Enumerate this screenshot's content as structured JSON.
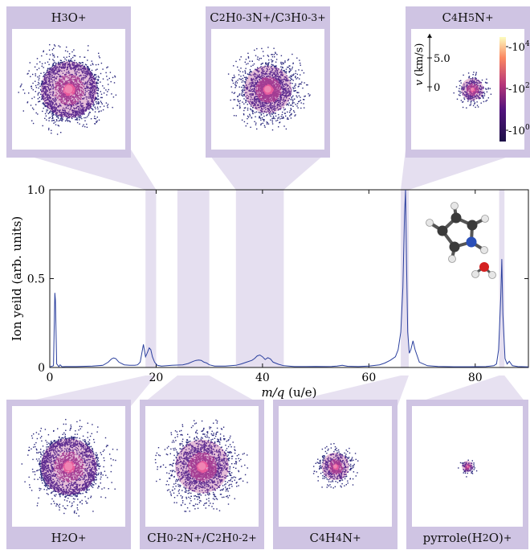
{
  "chart_data": {
    "type": "line",
    "xlabel_var": "m/q",
    "xlabel_unit": "(u/e)",
    "ylabel": "Ion yeild (arb. units)",
    "xlim": [
      0,
      90
    ],
    "ylim": [
      0,
      1.0
    ],
    "xticks": [
      "0",
      "20",
      "40",
      "60",
      "80"
    ],
    "xtick_values": [
      0,
      20,
      40,
      60,
      80
    ],
    "yticks": [
      "0",
      "0.5",
      "1.0"
    ],
    "ytick_values": [
      0,
      0.5,
      1.0
    ],
    "line_color": "#2a3f9e",
    "band_color": "#cfc4e3",
    "grid": false,
    "series": [
      {
        "x": [
          0,
          0.7,
          0.95,
          1.05,
          1.3,
          1.7,
          1.95,
          2.05,
          2.3,
          3,
          5,
          8,
          10,
          11,
          11.6,
          12,
          12.4,
          13,
          14,
          15,
          16,
          16.5,
          17,
          17.6,
          18,
          18.3,
          18.7,
          19,
          19.3,
          19.7,
          20.2,
          21,
          23,
          25,
          26,
          27,
          27.5,
          28,
          28.5,
          29,
          29.5,
          30,
          31,
          33,
          35,
          36,
          36.5,
          37,
          38,
          38.5,
          39,
          39.5,
          40,
          40.5,
          41,
          41.5,
          42,
          43,
          44,
          46,
          48,
          50,
          52,
          53,
          54,
          55,
          56,
          58,
          60,
          62,
          63,
          64,
          65,
          65.5,
          66,
          66.4,
          66.7,
          66.9,
          67.1,
          67.3,
          67.6,
          67.9,
          68.3,
          68.7,
          69.5,
          71,
          73,
          76,
          79,
          82,
          83.5,
          84,
          84.4,
          84.8,
          85.0,
          85.2,
          85.6,
          86.0,
          86.4,
          87,
          88,
          90
        ],
        "y": [
          0.003,
          0.01,
          0.42,
          0.38,
          0.02,
          0.005,
          0.015,
          0.012,
          0.004,
          0.005,
          0.005,
          0.008,
          0.012,
          0.03,
          0.048,
          0.054,
          0.05,
          0.03,
          0.015,
          0.012,
          0.012,
          0.015,
          0.03,
          0.13,
          0.06,
          0.08,
          0.11,
          0.1,
          0.06,
          0.03,
          0.012,
          0.008,
          0.012,
          0.015,
          0.022,
          0.035,
          0.04,
          0.042,
          0.04,
          0.03,
          0.025,
          0.015,
          0.008,
          0.008,
          0.012,
          0.02,
          0.025,
          0.03,
          0.04,
          0.05,
          0.065,
          0.07,
          0.06,
          0.045,
          0.055,
          0.048,
          0.03,
          0.018,
          0.01,
          0.005,
          0.005,
          0.006,
          0.005,
          0.006,
          0.008,
          0.012,
          0.007,
          0.005,
          0.008,
          0.015,
          0.025,
          0.04,
          0.06,
          0.1,
          0.2,
          0.45,
          0.85,
          1.0,
          0.55,
          0.2,
          0.08,
          0.1,
          0.15,
          0.1,
          0.03,
          0.01,
          0.006,
          0.004,
          0.004,
          0.005,
          0.01,
          0.02,
          0.1,
          0.4,
          0.61,
          0.3,
          0.05,
          0.02,
          0.035,
          0.01,
          0.005,
          0.003
        ]
      }
    ],
    "highlight_bands": [
      {
        "x": [
          18,
          20
        ]
      },
      {
        "x": [
          24,
          30
        ]
      },
      {
        "x": [
          35,
          44
        ]
      },
      {
        "x": [
          66,
          67.5
        ]
      },
      {
        "x": [
          84.5,
          85.5
        ]
      }
    ],
    "top_panels": [
      {
        "prefix": "H",
        "sub": "3",
        "rest": "O",
        "sup": "+",
        "band": 0,
        "radius": 0.45,
        "ring": true
      },
      {
        "label_html": "C<sub>2</sub>H<sub>0-3</sub>N<sup>+</sup>/C<sub>3</sub>H<sub>0-3</sub><sup>+</sup>",
        "band": 2,
        "radius": 0.38,
        "ring": false
      },
      {
        "label_html": "C<sub>4</sub>H<sub>5</sub>N<sup>+</sup>",
        "band": 3,
        "radius": 0.18,
        "ring": false
      }
    ],
    "bottom_panels": [
      {
        "label_html": "H<sub>2</sub>O<sup>+</sup>",
        "band": 0,
        "radius": 0.45,
        "ring": true
      },
      {
        "label_html": "CH<sub>0-2</sub>N<sup>+</sup>/C<sub>2</sub>H<sub>0-2</sub><sup>+</sup>",
        "band": 1,
        "radius": 0.43,
        "ring": false
      },
      {
        "label_html": "C<sub>4</sub>H<sub>4</sub>N<sup>+</sup>",
        "band": 3,
        "radius": 0.22,
        "ring": false
      },
      {
        "label_html": "pyrrole(H<sub>2</sub>O)<sup>+</sup>",
        "band": 4,
        "radius": 0.09,
        "ring": false
      }
    ],
    "velocity_axis": {
      "label_var": "v",
      "label_unit": "(km/s)",
      "ticks": [
        "5.0",
        "0"
      ]
    },
    "colorbar": {
      "ticks_base": [
        "10",
        "10",
        "10"
      ],
      "ticks_exp": [
        "4",
        "2",
        "0"
      ],
      "colors": [
        "#fcfdbf",
        "#fb8761",
        "#b73779",
        "#51127c",
        "#1d1147"
      ]
    }
  }
}
